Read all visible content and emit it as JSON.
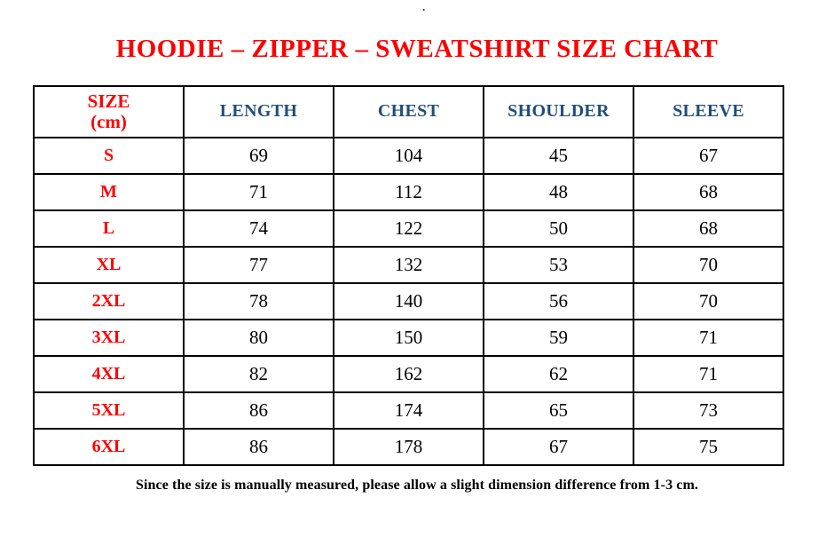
{
  "page": {
    "stray_dot": ".",
    "title": "HOODIE – ZIPPER – SWEATSHIRT SIZE CHART",
    "footnote": "Since the size is manually measured, please allow a slight dimension difference from 1-3 cm."
  },
  "colors": {
    "title_red": "#ff0000",
    "size_label_red": "#ff0000",
    "column_header_blue": "#1f4e79",
    "value_black": "#000000",
    "border_black": "#000000",
    "background_white": "#ffffff"
  },
  "table": {
    "header": {
      "size_line1": "SIZE",
      "size_line2": "(cm)",
      "columns": [
        "LENGTH",
        "CHEST",
        "SHOULDER",
        "SLEEVE"
      ]
    },
    "rows": [
      [
        "S",
        "69",
        "104",
        "45",
        "67"
      ],
      [
        "M",
        "71",
        "112",
        "48",
        "68"
      ],
      [
        "L",
        "74",
        "122",
        "50",
        "68"
      ],
      [
        "XL",
        "77",
        "132",
        "53",
        "70"
      ],
      [
        "2XL",
        "78",
        "140",
        "56",
        "70"
      ],
      [
        "3XL",
        "80",
        "150",
        "59",
        "71"
      ],
      [
        "4XL",
        "82",
        "162",
        "62",
        "71"
      ],
      [
        "5XL",
        "86",
        "174",
        "65",
        "73"
      ],
      [
        "6XL",
        "86",
        "178",
        "67",
        "75"
      ]
    ]
  }
}
